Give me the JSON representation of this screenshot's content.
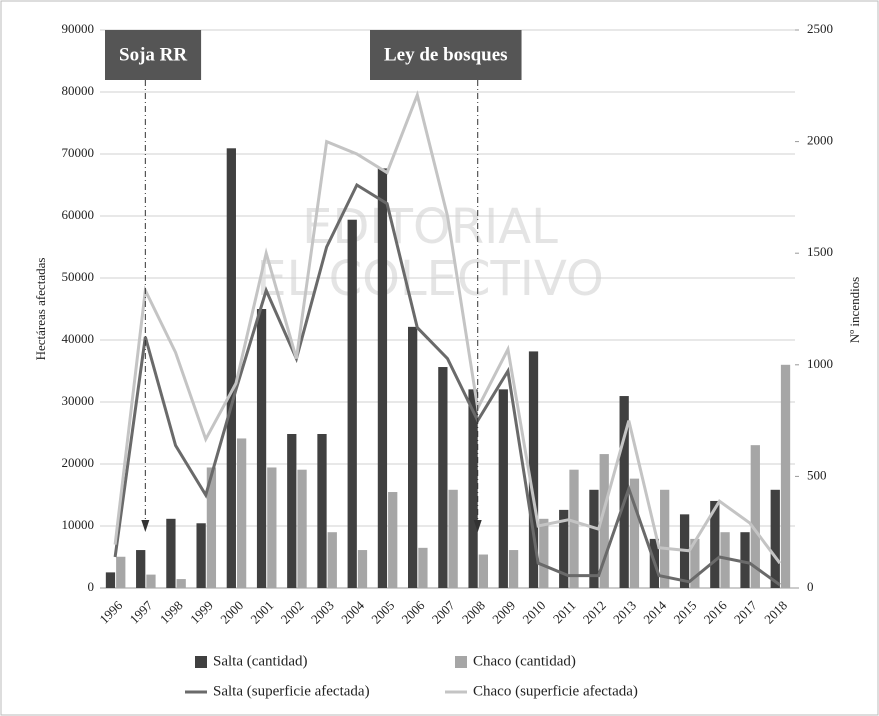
{
  "chart_data": {
    "type": "combo",
    "categories": [
      "1996",
      "1997",
      "1998",
      "1999",
      "2000",
      "2001",
      "2002",
      "2003",
      "2004",
      "2005",
      "2006",
      "2007",
      "2008",
      "2009",
      "2010",
      "2011",
      "2012",
      "2013",
      "2014",
      "2015",
      "2016",
      "2017",
      "2018"
    ],
    "y_label": "Hectáreas afectadas",
    "y2_label": "Nº incendios",
    "ylim": [
      0,
      90000
    ],
    "yticks": [
      0,
      10000,
      20000,
      30000,
      40000,
      50000,
      60000,
      70000,
      80000,
      90000
    ],
    "y2lim": [
      0,
      2500
    ],
    "y2ticks": [
      0,
      500,
      1000,
      1500,
      2000,
      2500
    ],
    "grid": true,
    "series": [
      {
        "name": "Salta (cantidad)",
        "kind": "bar",
        "axis": "y2",
        "color": "#404040",
        "values": [
          70,
          170,
          310,
          290,
          1970,
          1250,
          690,
          690,
          1650,
          1880,
          1170,
          990,
          890,
          890,
          1060,
          350,
          440,
          860,
          220,
          330,
          390,
          250,
          440
        ]
      },
      {
        "name": "Chaco (cantidad)",
        "kind": "bar",
        "axis": "y2",
        "color": "#a6a6a6",
        "values": [
          140,
          60,
          40,
          540,
          670,
          540,
          530,
          250,
          170,
          430,
          180,
          440,
          150,
          170,
          310,
          530,
          600,
          490,
          440,
          220,
          250,
          640,
          1000
        ]
      },
      {
        "name": "Salta (superficie afectada)",
        "kind": "line",
        "color": "#6a6a6a",
        "values": [
          5000,
          40500,
          23000,
          15000,
          32000,
          48000,
          37000,
          55000,
          65000,
          62000,
          42000,
          37000,
          27000,
          35000,
          4000,
          2000,
          2000,
          16000,
          2000,
          1000,
          5000,
          4000,
          500
        ]
      },
      {
        "name": "Chaco (superficie afectada)",
        "kind": "line",
        "color": "#c4c4c4",
        "values": [
          7000,
          48000,
          38000,
          24000,
          33000,
          54000,
          37000,
          72000,
          70000,
          67000,
          79500,
          60000,
          29000,
          38500,
          10000,
          11000,
          9500,
          27000,
          6500,
          6000,
          14000,
          10500,
          4000
        ]
      }
    ],
    "annotations": [
      {
        "text": "Soja RR",
        "at": "1997"
      },
      {
        "text": "Ley de bosques",
        "at": "2008"
      }
    ],
    "watermark": [
      "EDITORIAL",
      "EL COLECTIVO"
    ],
    "legend": "bottom"
  }
}
